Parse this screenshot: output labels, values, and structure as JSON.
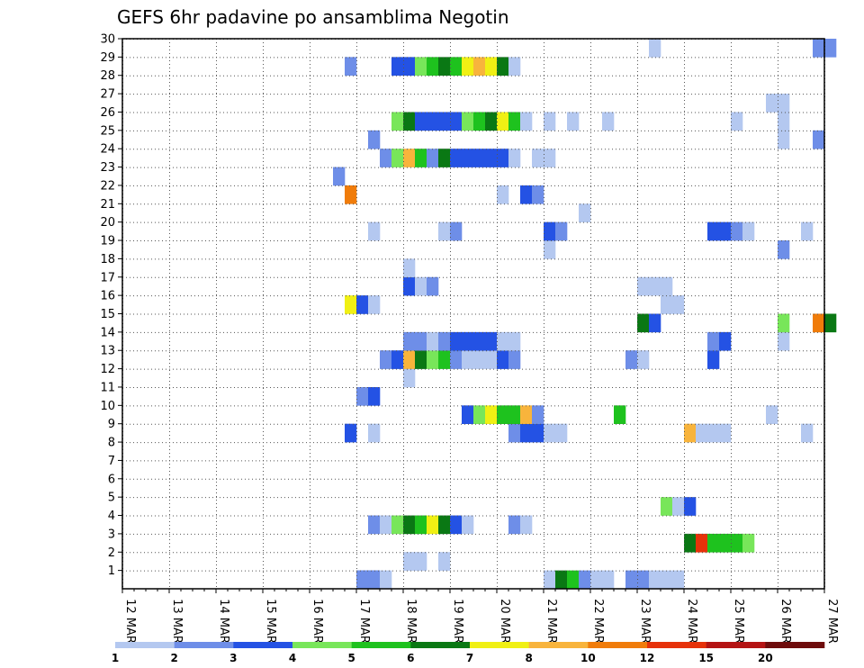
{
  "chart_data": {
    "type": "heatmap",
    "title": "GEFS 6hr padavine po ansamblima Negotin",
    "xlabel": "",
    "ylabel": "",
    "x_tick_labels": [
      "12 MAR",
      "13 MAR",
      "14 MAR",
      "15 MAR",
      "16 MAR",
      "17 MAR",
      "18 MAR",
      "19 MAR",
      "20 MAR",
      "21 MAR",
      "22 MAR",
      "23 MAR",
      "24 MAR",
      "25 MAR",
      "26 MAR",
      "27 MAR"
    ],
    "x_range_days": [
      12,
      27
    ],
    "y_tick_labels": [
      "1",
      "2",
      "3",
      "4",
      "5",
      "6",
      "7",
      "8",
      "9",
      "10",
      "11",
      "12",
      "13",
      "14",
      "15",
      "16",
      "17",
      "18",
      "19",
      "20",
      "21",
      "22",
      "23",
      "24",
      "25",
      "26",
      "27",
      "28",
      "29",
      "30"
    ],
    "y_range": [
      0,
      30
    ],
    "grid": true,
    "step_hours": 6,
    "color_levels": [
      1,
      2,
      3,
      4,
      5,
      6,
      7,
      8,
      10,
      12,
      15,
      20
    ],
    "legend_tick_labels": [
      "1",
      "2",
      "3",
      "4",
      "5",
      "6",
      "7",
      "8",
      "10",
      "12",
      "15",
      "20"
    ],
    "colors": [
      "#b4c8f0",
      "#6e8ee8",
      "#2452e4",
      "#78e65a",
      "#1ec21e",
      "#0a7814",
      "#f0f014",
      "#f8b43c",
      "#f07c0a",
      "#e6320a",
      "#b41414",
      "#6e0c0c"
    ],
    "cells": [
      [
        0,
        17.0,
        3
      ],
      [
        0,
        17.0,
        2
      ],
      [
        0,
        17.25,
        3
      ],
      [
        0,
        17.25,
        2
      ],
      [
        0,
        17.5,
        1
      ],
      [
        0,
        21.0,
        1
      ],
      [
        0,
        21.25,
        6
      ],
      [
        0,
        21.5,
        5
      ],
      [
        0,
        21.75,
        2
      ],
      [
        0,
        22.0,
        1
      ],
      [
        0,
        22.25,
        1
      ],
      [
        0,
        22.75,
        2
      ],
      [
        0,
        23.0,
        2
      ],
      [
        0,
        23.25,
        1
      ],
      [
        0,
        23.5,
        1
      ],
      [
        0,
        23.75,
        1
      ],
      [
        1,
        18.0,
        1
      ],
      [
        1,
        18.25,
        1
      ],
      [
        1,
        18.75,
        1
      ],
      [
        2,
        24.0,
        6
      ],
      [
        2,
        24.25,
        10
      ],
      [
        2,
        24.5,
        5
      ],
      [
        2,
        24.75,
        5
      ],
      [
        2,
        25.0,
        5
      ],
      [
        2,
        25.25,
        4
      ],
      [
        3,
        17.25,
        2
      ],
      [
        3,
        17.5,
        1
      ],
      [
        3,
        17.75,
        4
      ],
      [
        3,
        18.0,
        6
      ],
      [
        3,
        18.25,
        5
      ],
      [
        3,
        18.5,
        7
      ],
      [
        3,
        18.75,
        6
      ],
      [
        3,
        19.0,
        3
      ],
      [
        3,
        19.25,
        1
      ],
      [
        3,
        20.25,
        2
      ],
      [
        3,
        20.5,
        1
      ],
      [
        4,
        23.5,
        4
      ],
      [
        4,
        23.75,
        1
      ],
      [
        4,
        24.0,
        3
      ],
      [
        8,
        16.75,
        3
      ],
      [
        8,
        17.25,
        1
      ],
      [
        8,
        20.25,
        2
      ],
      [
        8,
        20.5,
        3
      ],
      [
        8,
        20.75,
        3
      ],
      [
        8,
        21.0,
        1
      ],
      [
        8,
        21.25,
        1
      ],
      [
        8,
        24.0,
        8
      ],
      [
        8,
        24.25,
        1
      ],
      [
        8,
        24.5,
        1
      ],
      [
        8,
        24.75,
        1
      ],
      [
        8,
        26.5,
        1
      ],
      [
        9,
        19.25,
        3
      ],
      [
        9,
        19.5,
        4
      ],
      [
        9,
        19.75,
        7
      ],
      [
        9,
        20.0,
        5
      ],
      [
        9,
        20.25,
        5
      ],
      [
        9,
        20.5,
        8
      ],
      [
        9,
        20.75,
        2
      ],
      [
        9,
        22.5,
        5
      ],
      [
        9,
        25.75,
        1
      ],
      [
        10,
        17.0,
        2
      ],
      [
        10,
        17.25,
        3
      ],
      [
        11,
        18.0,
        1
      ],
      [
        12,
        17.5,
        2
      ],
      [
        12,
        17.75,
        3
      ],
      [
        12,
        18.0,
        8
      ],
      [
        12,
        18.25,
        6
      ],
      [
        12,
        18.5,
        4
      ],
      [
        12,
        18.75,
        5
      ],
      [
        12,
        19.0,
        2
      ],
      [
        12,
        19.25,
        1
      ],
      [
        12,
        19.5,
        1
      ],
      [
        12,
        19.75,
        1
      ],
      [
        12,
        20.0,
        3
      ],
      [
        12,
        20.25,
        2
      ],
      [
        12,
        22.75,
        2
      ],
      [
        12,
        23.0,
        1
      ],
      [
        12,
        24.5,
        3
      ],
      [
        13,
        18.0,
        2
      ],
      [
        13,
        18.25,
        2
      ],
      [
        13,
        18.5,
        1
      ],
      [
        13,
        18.75,
        2
      ],
      [
        13,
        19.0,
        3
      ],
      [
        13,
        19.25,
        3
      ],
      [
        13,
        19.5,
        3
      ],
      [
        13,
        19.75,
        3
      ],
      [
        13,
        20.0,
        1
      ],
      [
        13,
        20.25,
        1
      ],
      [
        13,
        24.5,
        2
      ],
      [
        13,
        24.75,
        3
      ],
      [
        13,
        26.0,
        1
      ],
      [
        14,
        23.0,
        6
      ],
      [
        14,
        23.25,
        3
      ],
      [
        14,
        26.0,
        4
      ],
      [
        14,
        26.75,
        9
      ],
      [
        14,
        27.0,
        6
      ],
      [
        15,
        16.75,
        7
      ],
      [
        15,
        17.0,
        3
      ],
      [
        15,
        17.25,
        1
      ],
      [
        15,
        23.5,
        1
      ],
      [
        15,
        23.75,
        1
      ],
      [
        16,
        18.0,
        3
      ],
      [
        16,
        18.25,
        1
      ],
      [
        16,
        18.5,
        2
      ],
      [
        16,
        23.0,
        1
      ],
      [
        16,
        23.25,
        1
      ],
      [
        16,
        23.5,
        1
      ],
      [
        17,
        18.0,
        1
      ],
      [
        18,
        21.0,
        1
      ],
      [
        18,
        26.0,
        2
      ],
      [
        19,
        17.25,
        1
      ],
      [
        19,
        18.75,
        1
      ],
      [
        19,
        19.0,
        2
      ],
      [
        19,
        21.0,
        3
      ],
      [
        19,
        21.25,
        2
      ],
      [
        19,
        24.5,
        3
      ],
      [
        19,
        24.75,
        3
      ],
      [
        19,
        25.0,
        2
      ],
      [
        19,
        25.25,
        1
      ],
      [
        19,
        26.5,
        1
      ],
      [
        20,
        21.75,
        1
      ],
      [
        21,
        16.75,
        9
      ],
      [
        21,
        20.0,
        1
      ],
      [
        21,
        20.5,
        3
      ],
      [
        21,
        20.75,
        2
      ],
      [
        22,
        16.5,
        2
      ],
      [
        23,
        17.5,
        2
      ],
      [
        23,
        17.75,
        4
      ],
      [
        23,
        18.0,
        8
      ],
      [
        23,
        18.25,
        5
      ],
      [
        23,
        18.5,
        2
      ],
      [
        23,
        18.75,
        6
      ],
      [
        23,
        19.0,
        3
      ],
      [
        23,
        19.25,
        3
      ],
      [
        23,
        19.5,
        3
      ],
      [
        23,
        19.75,
        3
      ],
      [
        23,
        20.0,
        3
      ],
      [
        23,
        20.25,
        1
      ],
      [
        23,
        20.75,
        1
      ],
      [
        23,
        21.0,
        1
      ],
      [
        24,
        17.25,
        2
      ],
      [
        24,
        26.0,
        1
      ],
      [
        24,
        26.75,
        2
      ],
      [
        25,
        17.75,
        4
      ],
      [
        25,
        18.0,
        6
      ],
      [
        25,
        18.25,
        3
      ],
      [
        25,
        18.5,
        3
      ],
      [
        25,
        18.75,
        3
      ],
      [
        25,
        19.0,
        3
      ],
      [
        25,
        19.25,
        4
      ],
      [
        25,
        19.5,
        5
      ],
      [
        25,
        19.75,
        6
      ],
      [
        25,
        20.0,
        7
      ],
      [
        25,
        20.25,
        5
      ],
      [
        25,
        20.5,
        1
      ],
      [
        25,
        21.0,
        1
      ],
      [
        25,
        21.5,
        1
      ],
      [
        25,
        22.25,
        1
      ],
      [
        25,
        25.0,
        1
      ],
      [
        25,
        26.0,
        1
      ],
      [
        26,
        25.75,
        1
      ],
      [
        26,
        26.0,
        1
      ],
      [
        28,
        16.75,
        2
      ],
      [
        28,
        17.75,
        3
      ],
      [
        28,
        18.0,
        3
      ],
      [
        28,
        18.25,
        4
      ],
      [
        28,
        18.5,
        5
      ],
      [
        28,
        18.75,
        6
      ],
      [
        28,
        19.0,
        5
      ],
      [
        28,
        19.25,
        7
      ],
      [
        28,
        19.5,
        8
      ],
      [
        28,
        19.75,
        7
      ],
      [
        28,
        20.0,
        6
      ],
      [
        28,
        20.25,
        1
      ],
      [
        29,
        23.25,
        1
      ],
      [
        29,
        26.75,
        2
      ],
      [
        29,
        27.0,
        2
      ]
    ]
  }
}
